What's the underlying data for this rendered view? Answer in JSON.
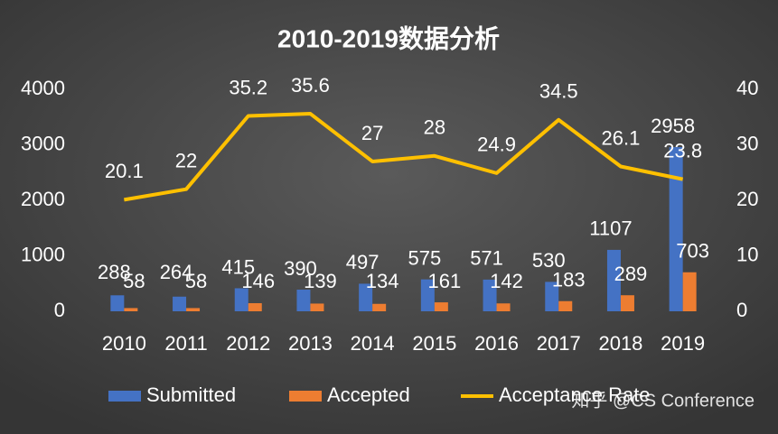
{
  "chart_data": {
    "type": "bar",
    "title": "2010-2019数据分析",
    "categories": [
      "2010",
      "2011",
      "2012",
      "2013",
      "2014",
      "2015",
      "2016",
      "2017",
      "2018",
      "2019"
    ],
    "series": [
      {
        "name": "Submitted",
        "color": "#4472c4",
        "values": [
          288,
          264,
          415,
          390,
          497,
          575,
          571,
          530,
          1107,
          2958
        ]
      },
      {
        "name": "Accepted",
        "color": "#ed7d31",
        "values": [
          58,
          58,
          146,
          139,
          134,
          161,
          142,
          183,
          289,
          703
        ]
      },
      {
        "name": "Acceptance Rate",
        "color": "#ffc000",
        "type": "line",
        "axis": "y2",
        "values": [
          20.1,
          22,
          35.2,
          35.6,
          27,
          28,
          24.9,
          34.5,
          26.1,
          23.8
        ]
      }
    ],
    "ylim": [
      0,
      4000
    ],
    "yticks": [
      0,
      1000,
      2000,
      3000,
      4000
    ],
    "y2lim": [
      0,
      40
    ],
    "y2ticks": [
      0,
      10,
      20,
      30,
      40
    ],
    "legend": "bottom",
    "watermark": "知乎 @CS Conference"
  }
}
